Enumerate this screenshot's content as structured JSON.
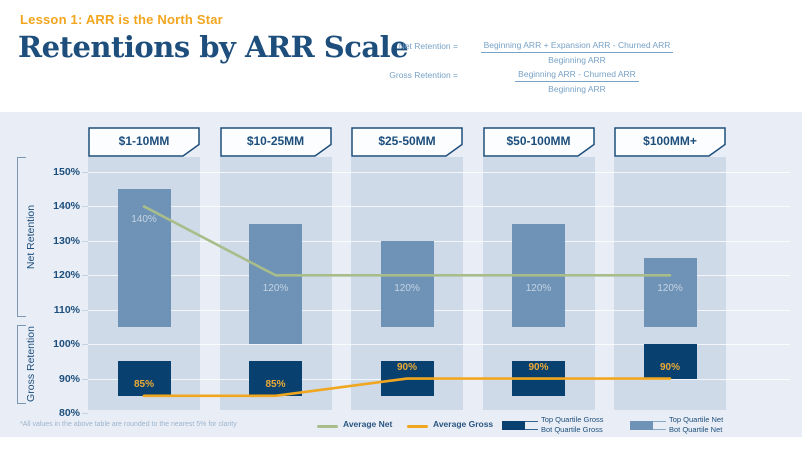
{
  "header": {
    "eyebrow": "Lesson 1: ARR is the North Star",
    "title": "Retentions by ARR Scale"
  },
  "formulas": [
    {
      "label": "Net Retention =",
      "numerator": "Beginning ARR + Expansion ARR - Churned ARR",
      "denominator": "Beginning ARR"
    },
    {
      "label": "Gross Retention =",
      "numerator": "Beginning ARR - Churned ARR",
      "denominator": "Beginning ARR"
    }
  ],
  "footnote": "*All values in the above table are rounded to the nearest 5% for clarity",
  "legend": {
    "average_net": "Average Net",
    "average_gross": "Average Gross",
    "top_quartile_gross": "Top Quartile Gross",
    "bot_quartile_gross": "Bot Quartile Gross",
    "top_quartile_net": "Top Quartile Net",
    "bot_quartile_net": "Bot Quartile Net"
  },
  "colors": {
    "accent_orange": "#f2a51e",
    "navy": "#1d4e7c",
    "formula_blue": "#78a2c6",
    "panel_bg": "#e9eef6",
    "band_bg": "#cfdae8",
    "net_bar": "#6e93b7",
    "gross_bar": "#084070",
    "average_net_line": "#a9bd8b",
    "average_gross_line": "#f0a61e",
    "net_bar_label": "#c5d3e2",
    "gross_bar_label": "#ecab36"
  },
  "chart_data": {
    "type": "bar",
    "subtype": "quartile-range bars with average lines (combo)",
    "categories": [
      "$1-10MM",
      "$10-25MM",
      "$25-50MM",
      "$50-100MM",
      "$100MM+"
    ],
    "y_axis": {
      "unit": "%",
      "min": 80,
      "max": 150,
      "grid": true,
      "ticks": [
        "150%",
        "140%",
        "130%",
        "120%",
        "110%",
        "100%",
        "90%",
        "80%"
      ]
    },
    "axis_groups": [
      {
        "label": "Net Retention",
        "range": [
          110,
          150
        ]
      },
      {
        "label": "Gross Retention",
        "range": [
          80,
          105
        ]
      }
    ],
    "series": [
      {
        "name": "Average Net",
        "type": "line",
        "color": "#a9bd8b",
        "values": [
          140,
          120,
          120,
          120,
          120
        ]
      },
      {
        "name": "Average Gross",
        "type": "line",
        "color": "#f0a61e",
        "values": [
          85,
          85,
          90,
          90,
          90
        ]
      },
      {
        "name": "Net Quartile Range",
        "type": "range-bar",
        "color": "#6e93b7",
        "top_quartile": [
          145,
          135,
          130,
          135,
          125
        ],
        "bot_quartile": [
          105,
          100,
          105,
          105,
          105
        ]
      },
      {
        "name": "Gross Quartile Range",
        "type": "range-bar",
        "color": "#084070",
        "top_quartile": [
          95,
          95,
          95,
          95,
          100
        ],
        "bot_quartile": [
          85,
          85,
          85,
          85,
          90
        ]
      }
    ],
    "bar_labels": {
      "net": [
        "140%",
        "120%",
        "120%",
        "120%",
        "120%"
      ],
      "gross": [
        "85%",
        "85%",
        "90%",
        "90%",
        "90%"
      ]
    },
    "legend_position": "bottom-right"
  }
}
